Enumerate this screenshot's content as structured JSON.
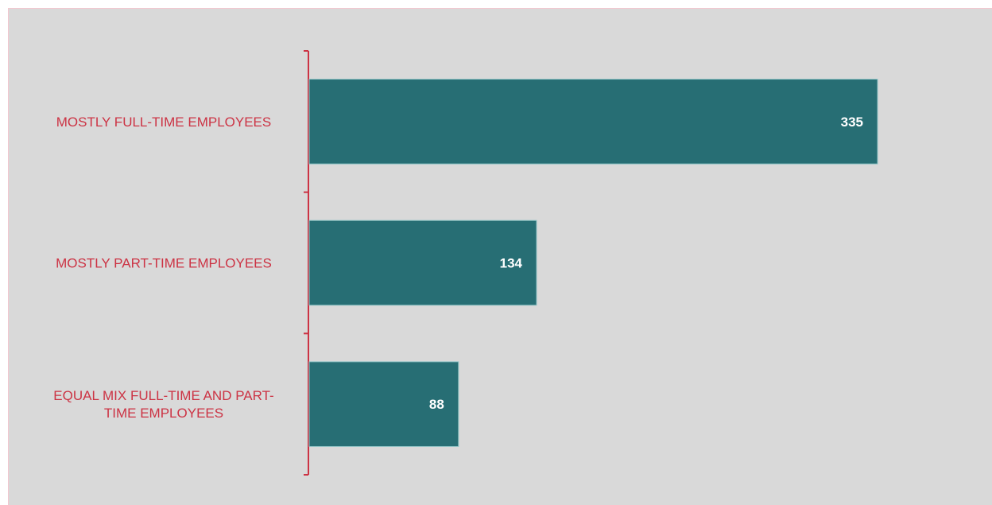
{
  "chart_data": {
    "type": "bar",
    "orientation": "horizontal",
    "categories": [
      "MOSTLY FULL-TIME EMPLOYEES",
      "MOSTLY PART-TIME EMPLOYEES",
      "EQUAL MIX FULL-TIME AND PART-TIME EMPLOYEES"
    ],
    "category_lines": [
      [
        "MOSTLY FULL-TIME EMPLOYEES"
      ],
      [
        "MOSTLY PART-TIME EMPLOYEES"
      ],
      [
        "EQUAL MIX FULL-TIME AND PART-",
        "TIME EMPLOYEES"
      ]
    ],
    "values": [
      335,
      134,
      88
    ],
    "data_labels": [
      "335",
      "134",
      "88"
    ],
    "title": "",
    "xlabel": "",
    "ylabel": "",
    "xlim": [
      0,
      400
    ],
    "grid": false,
    "legend": "none",
    "colors": {
      "bar": "#276e74",
      "bar_edge": "#8fc3c5",
      "axis": "#cc3344",
      "label_text": "#cc3344",
      "data_label": "#ffffff",
      "background": "#d9d9d9"
    }
  }
}
